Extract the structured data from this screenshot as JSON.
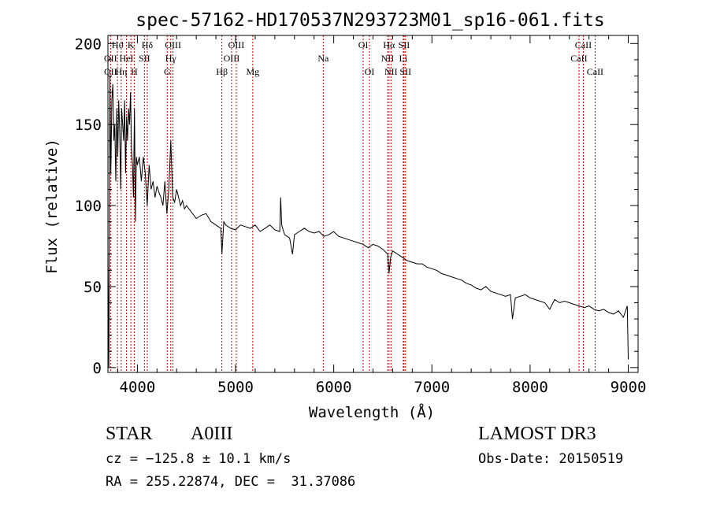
{
  "chart_data": {
    "type": "line",
    "title": "spec-57162-HD170537N293723M01_sp16-061.fits",
    "xlabel": "Wavelength (Å)",
    "ylabel": "Flux (relative)",
    "xlim": [
      3700,
      9100
    ],
    "ylim": [
      -3,
      205
    ],
    "xticks": [
      4000,
      5000,
      6000,
      7000,
      8000,
      9000
    ],
    "yticks": [
      0,
      50,
      100,
      150,
      200
    ],
    "grid": false,
    "line_color": "#000000",
    "marker_color": "#cc0000",
    "x": [
      3700,
      3710,
      3720,
      3730,
      3740,
      3750,
      3760,
      3770,
      3780,
      3790,
      3800,
      3810,
      3820,
      3830,
      3840,
      3850,
      3860,
      3870,
      3880,
      3890,
      3900,
      3910,
      3920,
      3930,
      3940,
      3950,
      3960,
      3970,
      3980,
      3990,
      4000,
      4020,
      4040,
      4060,
      4080,
      4100,
      4120,
      4140,
      4160,
      4180,
      4200,
      4220,
      4240,
      4260,
      4280,
      4300,
      4320,
      4340,
      4360,
      4380,
      4400,
      4420,
      4440,
      4460,
      4480,
      4500,
      4550,
      4600,
      4650,
      4700,
      4750,
      4800,
      4850,
      4861,
      4880,
      4900,
      4950,
      5000,
      5050,
      5100,
      5150,
      5200,
      5250,
      5300,
      5350,
      5400,
      5450,
      5460,
      5470,
      5500,
      5550,
      5580,
      5600,
      5650,
      5700,
      5750,
      5800,
      5850,
      5900,
      5950,
      6000,
      6050,
      6100,
      6150,
      6200,
      6250,
      6300,
      6350,
      6400,
      6450,
      6500,
      6550,
      6563,
      6580,
      6600,
      6650,
      6700,
      6750,
      6800,
      6850,
      6900,
      6950,
      7000,
      7050,
      7100,
      7150,
      7200,
      7250,
      7300,
      7350,
      7400,
      7450,
      7500,
      7550,
      7600,
      7650,
      7700,
      7750,
      7800,
      7820,
      7850,
      7900,
      7950,
      8000,
      8050,
      8100,
      8150,
      8200,
      8250,
      8300,
      8350,
      8400,
      8450,
      8500,
      8550,
      8600,
      8650,
      8700,
      8750,
      8800,
      8850,
      8900,
      8950,
      8990,
      9000
    ],
    "y": [
      70,
      0,
      180,
      120,
      165,
      175,
      140,
      150,
      115,
      160,
      130,
      165,
      145,
      110,
      160,
      150,
      140,
      165,
      120,
      155,
      140,
      160,
      150,
      170,
      135,
      125,
      105,
      160,
      90,
      130,
      125,
      130,
      115,
      130,
      120,
      100,
      125,
      110,
      115,
      105,
      112,
      108,
      105,
      100,
      115,
      95,
      110,
      140,
      105,
      102,
      110,
      105,
      100,
      103,
      98,
      100,
      96,
      92,
      94,
      95,
      90,
      88,
      86,
      70,
      90,
      88,
      86,
      85,
      88,
      87,
      86,
      88,
      84,
      86,
      88,
      85,
      84,
      105,
      88,
      82,
      80,
      70,
      82,
      84,
      86,
      84,
      83,
      84,
      81,
      82,
      84,
      81,
      80,
      79,
      78,
      77,
      76,
      74,
      76,
      75,
      73,
      70,
      58,
      68,
      72,
      70,
      68,
      66,
      65,
      64,
      64,
      62,
      61,
      60,
      58,
      57,
      56,
      55,
      54,
      52,
      51,
      49,
      48,
      50,
      47,
      46,
      45,
      44,
      45,
      30,
      43,
      44,
      45,
      43,
      42,
      41,
      40,
      36,
      42,
      40,
      41,
      40,
      39,
      38,
      37,
      38,
      36,
      35,
      36,
      34,
      33,
      35,
      31,
      38,
      5
    ]
  },
  "spectral_lines": [
    {
      "label": "Hϑ",
      "wavelength": 3797,
      "row": 1
    },
    {
      "label": "K",
      "wavelength": 3934,
      "row": 1
    },
    {
      "label": "Hδ",
      "wavelength": 4101,
      "row": 1
    },
    {
      "label": "OIII",
      "wavelength": 4363,
      "row": 1
    },
    {
      "label": "OIII",
      "wavelength": 5007,
      "row": 1
    },
    {
      "label": "OI",
      "wavelength": 6300,
      "row": 1
    },
    {
      "label": "Hα",
      "wavelength": 6563,
      "row": 1
    },
    {
      "label": "SII",
      "wavelength": 6716,
      "row": 1
    },
    {
      "label": "CaII",
      "wavelength": 8542,
      "row": 1
    },
    {
      "label": "OII",
      "wavelength": 3727,
      "row": 2
    },
    {
      "label": "HeI",
      "wavelength": 3889,
      "row": 2
    },
    {
      "label": "SII",
      "wavelength": 4072,
      "row": 2
    },
    {
      "label": "Hγ",
      "wavelength": 4340,
      "row": 2
    },
    {
      "label": "OIII",
      "wavelength": 4959,
      "row": 2
    },
    {
      "label": "Na",
      "wavelength": 5893,
      "row": 2
    },
    {
      "label": "NII",
      "wavelength": 6548,
      "row": 2
    },
    {
      "label": "Li",
      "wavelength": 6708,
      "row": 2
    },
    {
      "label": "CaII",
      "wavelength": 8498,
      "row": 2
    },
    {
      "label": "OII",
      "wavelength": 3727,
      "row": 3
    },
    {
      "label": "Hη",
      "wavelength": 3835,
      "row": 3
    },
    {
      "label": "H",
      "wavelength": 3968,
      "row": 3
    },
    {
      "label": "G",
      "wavelength": 4304,
      "row": 3
    },
    {
      "label": "Hβ",
      "wavelength": 4861,
      "row": 3
    },
    {
      "label": "Mg",
      "wavelength": 5175,
      "row": 3
    },
    {
      "label": "OI",
      "wavelength": 6364,
      "row": 3
    },
    {
      "label": "NII",
      "wavelength": 6583,
      "row": 3
    },
    {
      "label": "SII",
      "wavelength": 6731,
      "row": 3
    },
    {
      "label": "CaII",
      "wavelength": 8662,
      "row": 3
    }
  ],
  "info": {
    "object_class": "STAR",
    "subclass": "A0III",
    "survey": "LAMOST DR3",
    "cz": "cz = −125.8 ± 10.1 km/s",
    "obs_date": "Obs-Date: 20150519",
    "coords": "RA = 255.22874, DEC =  31.37086"
  }
}
